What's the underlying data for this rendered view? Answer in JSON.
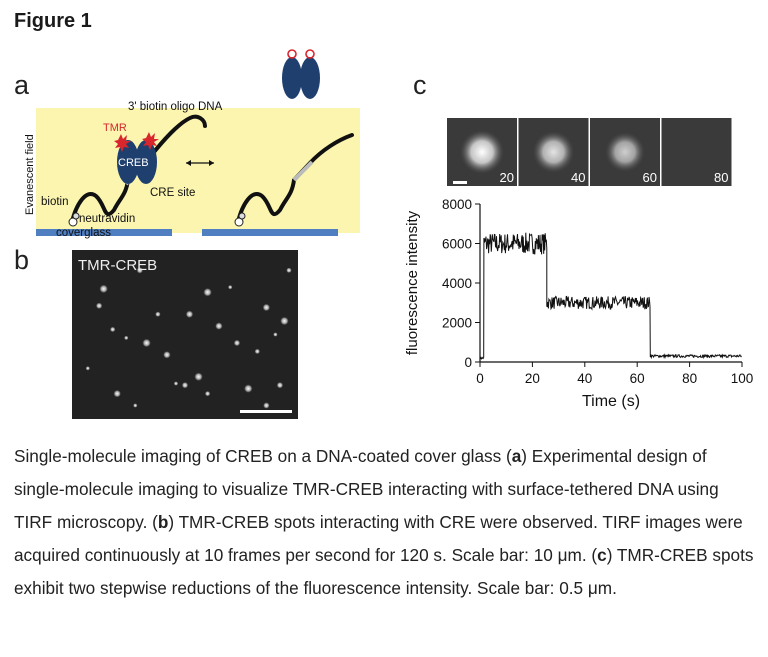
{
  "figure_title": "Figure 1",
  "panels": {
    "a": {
      "letter": "a",
      "labels": {
        "evanescent": "Evanescent field",
        "oligo": "3' biotin oligo DNA",
        "tmr": "TMR",
        "creb": "CREB",
        "cre_site": "CRE site",
        "biotin": "biotin",
        "neutravidin": "neutravidin",
        "coverglass": "coverglass"
      }
    },
    "b": {
      "letter": "b",
      "label": "TMR-CREB",
      "spots": [
        [
          0.07,
          0.7
        ],
        [
          0.12,
          0.33
        ],
        [
          0.14,
          0.23
        ],
        [
          0.18,
          0.47
        ],
        [
          0.2,
          0.85
        ],
        [
          0.24,
          0.52
        ],
        [
          0.3,
          0.12
        ],
        [
          0.33,
          0.55
        ],
        [
          0.38,
          0.38
        ],
        [
          0.42,
          0.62
        ],
        [
          0.46,
          0.79
        ],
        [
          0.5,
          0.8
        ],
        [
          0.56,
          0.75
        ],
        [
          0.6,
          0.85
        ],
        [
          0.65,
          0.45
        ],
        [
          0.7,
          0.22
        ],
        [
          0.73,
          0.55
        ],
        [
          0.78,
          0.82
        ],
        [
          0.82,
          0.6
        ],
        [
          0.86,
          0.34
        ],
        [
          0.9,
          0.5
        ],
        [
          0.92,
          0.8
        ],
        [
          0.94,
          0.42
        ],
        [
          0.96,
          0.12
        ],
        [
          0.52,
          0.38
        ],
        [
          0.28,
          0.92
        ],
        [
          0.86,
          0.92
        ],
        [
          0.6,
          0.25
        ]
      ]
    },
    "c": {
      "letter": "c",
      "frames": [
        "20",
        "40",
        "60",
        "80"
      ],
      "frame_intensity": [
        1.0,
        0.8,
        0.65,
        0.0
      ]
    }
  },
  "chart_data": {
    "type": "line",
    "xlabel": "Time (s)",
    "ylabel": "fluorescence intensity",
    "xlim": [
      0,
      100
    ],
    "ylim": [
      0,
      8000
    ],
    "xticks": [
      0,
      20,
      40,
      60,
      80,
      100
    ],
    "yticks": [
      0,
      2000,
      4000,
      6000,
      8000
    ],
    "steps": [
      {
        "t_start": 0,
        "t_end": 1.5,
        "level": 200
      },
      {
        "t_start": 1.5,
        "t_end": 25.5,
        "level": 6000
      },
      {
        "t_start": 25.5,
        "t_end": 65,
        "level": 3000
      },
      {
        "t_start": 65,
        "t_end": 100,
        "level": 300
      }
    ]
  },
  "caption": {
    "p1": "Single-molecule imaging of CREB on a DNA-coated cover glass (",
    "a": "a",
    "p2": ") Experimental design of single-molecule imaging to visualize TMR-CREB interacting with surface-tethered DNA using TIRF microscopy. (",
    "b": "b",
    "p3": ") TMR-CREB spots interacting with CRE were observed. TIRF images were acquired continuously at 10 frames per second for 120 s. Scale bar: 10 μm. (",
    "c": "c",
    "p4": ") TMR-CREB spots exhibit two stepwise reductions of the fluorescence intensity. Scale bar: 0.5 μm."
  }
}
